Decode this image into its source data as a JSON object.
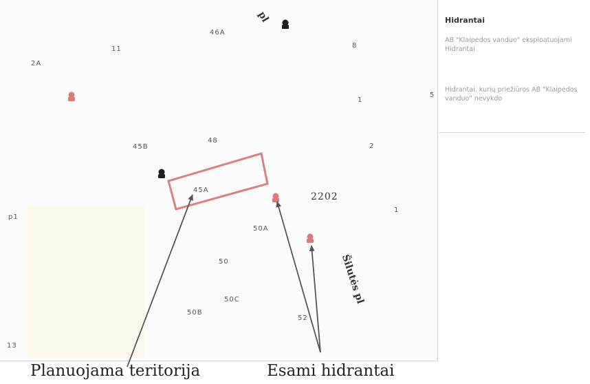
{
  "map": {
    "labels": {
      "l46a": "46A",
      "l11": "11",
      "l2a": "2A",
      "l8": "8",
      "l5": "5",
      "l1a": "1",
      "l45b": "45B",
      "l48": "48",
      "l2": "2",
      "l45a": "45A",
      "l1b": "1",
      "l50a": "50A",
      "l50": "50",
      "l50c": "50C",
      "l50b": "50B",
      "l52": "52",
      "lp1": "p1",
      "l13": "13"
    },
    "road_top": "pl",
    "road_right": "Šilutės pl",
    "parcel_number": "2202"
  },
  "legend": {
    "title": "Hidrantai",
    "entry1": "AB \"Klaipėdos vanduo\" eksploatuojami Hidrantai",
    "entry2": "Hidrantai, kurių priežiūros AB \"Klaipėdos vanduo\" nevykdo",
    "color_red": "#d97a7a",
    "color_black": "#1f1f1f"
  },
  "annotations": {
    "planned_area": "Planuojama teritorija",
    "existing_hydrants": "Esami hidrantai"
  }
}
